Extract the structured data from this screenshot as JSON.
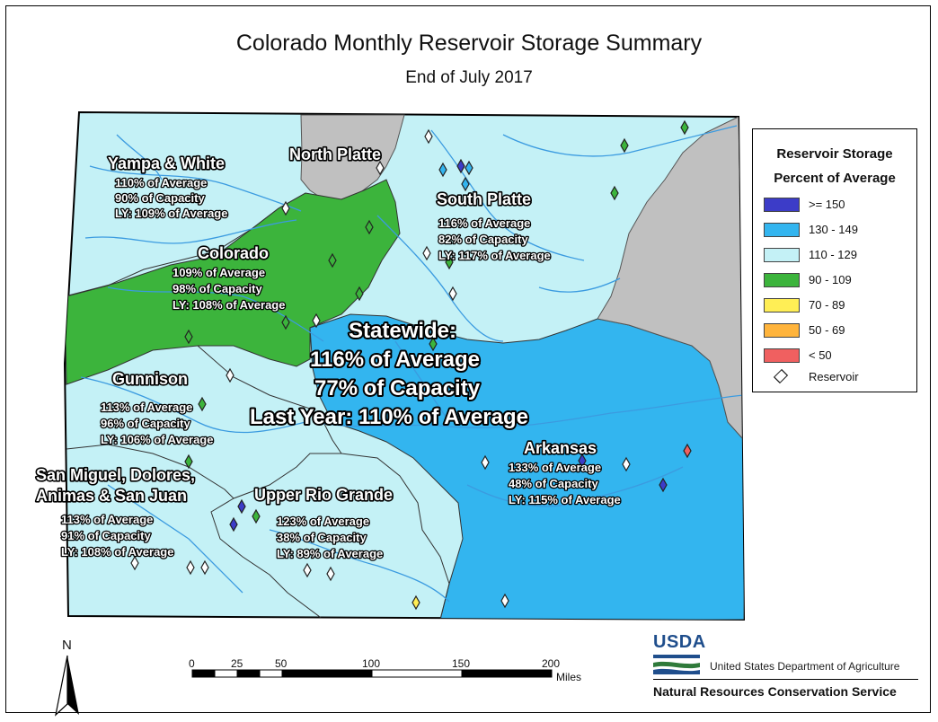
{
  "title": "Colorado Monthly Reservoir Storage Summary",
  "subtitle": "End of July 2017",
  "colors": {
    "ge150": "#3c3cc8",
    "r130_149": "#33b5ef",
    "r110_129": "#c4f1f6",
    "r90_109": "#3cb43c",
    "r70_89": "#ffee55",
    "r50_69": "#ffb43c",
    "lt50": "#f06060",
    "no_data": "#c0c0c0",
    "rivers": "#3b9be0"
  },
  "basins": [
    {
      "name": "Yampa & White",
      "lines": [
        "110% of Average",
        "90% of Capacity",
        "LY: 109% of Average"
      ]
    },
    {
      "name": "North Platte",
      "lines": []
    },
    {
      "name": "South Platte",
      "lines": [
        "116% of Average",
        "82% of Capacity",
        "LY: 117% of Average"
      ]
    },
    {
      "name": "Colorado",
      "lines": [
        "109% of Average",
        "98% of Capacity",
        "LY: 108% of Average"
      ]
    },
    {
      "name": "Gunnison",
      "lines": [
        "113% of Average",
        "96% of Capacity",
        "LY: 106% of Average"
      ]
    },
    {
      "name": "Arkansas",
      "lines": [
        "133% of Average",
        "48% of Capacity",
        "LY: 115% of Average"
      ]
    },
    {
      "name": "San Miguel, Dolores,",
      "name2": "Animas & San Juan",
      "lines": [
        "113% of Average",
        "91% of Capacity",
        "LY: 108% of Average"
      ]
    },
    {
      "name": "Upper Rio Grande",
      "lines": [
        "123% of Average",
        "38% of Capacity",
        "LY: 89% of Average"
      ]
    }
  ],
  "statewide": {
    "heading": "Statewide:",
    "lines": [
      "116% of Average",
      "77% of Capacity",
      "Last Year: 110% of Average"
    ]
  },
  "legend": {
    "title1": "Reservoir Storage",
    "title2": "Percent of Average",
    "items": [
      {
        "label": ">= 150",
        "color": "#3c3cc8"
      },
      {
        "label": "130 - 149",
        "color": "#33b5ef"
      },
      {
        "label": "110 - 129",
        "color": "#c4f1f6"
      },
      {
        "label": "90 - 109",
        "color": "#3cb43c"
      },
      {
        "label": "70 - 89",
        "color": "#ffee55"
      },
      {
        "label": "50 - 69",
        "color": "#ffb43c"
      },
      {
        "label": "< 50",
        "color": "#f06060"
      }
    ],
    "reservoir_label": "Reservoir"
  },
  "scale_bar": {
    "ticks": [
      "0",
      "25",
      "50",
      "100",
      "150",
      "200"
    ],
    "unit": "Miles"
  },
  "north_arrow": "N",
  "agency": {
    "logo_text": "USDA",
    "department": "United States Department of Agriculture",
    "service": "Natural Resources Conservation Service"
  }
}
